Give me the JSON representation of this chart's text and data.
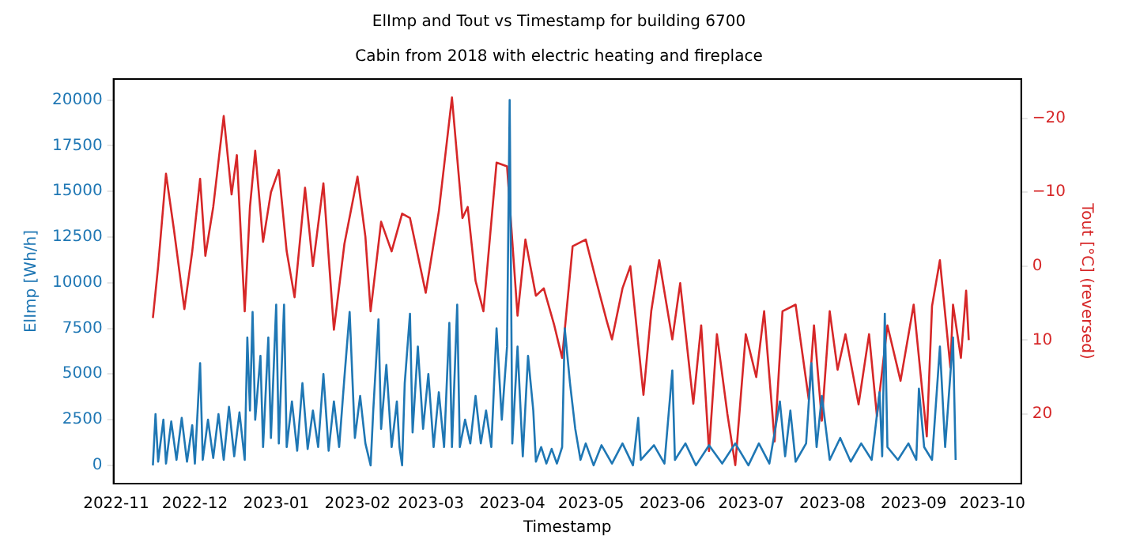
{
  "chart_data": {
    "type": "line",
    "title": "ElImp and Tout vs Timestamp for building 6700",
    "subtitle": "Cabin from 2018 with electric heating and fireplace",
    "xlabel": "Timestamp",
    "ylabel": "ElImp [Wh/h]",
    "y2label": "Tout [°C] (reversed)",
    "xlim": [
      "2022-10-31",
      "2023-10-12"
    ],
    "xticks": [
      "2022-11",
      "2022-12",
      "2023-01",
      "2023-02",
      "2023-03",
      "2023-04",
      "2023-05",
      "2023-06",
      "2023-07",
      "2023-08",
      "2023-09",
      "2023-10"
    ],
    "ylim": [
      -1000,
      21150
    ],
    "yticks": [
      0,
      2500,
      5000,
      7500,
      10000,
      12500,
      15000,
      17500,
      20000
    ],
    "y2lim": [
      29.4,
      -25.3
    ],
    "y2ticks": [
      {
        "value": -20,
        "label": "−20"
      },
      {
        "value": -10,
        "label": "−10"
      },
      0,
      10,
      20
    ],
    "grid": false,
    "legend": false,
    "series": [
      {
        "color": "#1f77b4",
        "x": [
          "2022-11-15",
          "2022-11-16",
          "2022-11-17",
          "2022-11-19",
          "2022-11-20",
          "2022-11-22",
          "2022-11-24",
          "2022-11-26",
          "2022-11-28",
          "2022-11-30",
          "2022-12-01",
          "2022-12-03",
          "2022-12-04",
          "2022-12-06",
          "2022-12-08",
          "2022-12-10",
          "2022-12-12",
          "2022-12-14",
          "2022-12-16",
          "2022-12-18",
          "2022-12-20",
          "2022-12-21",
          "2022-12-22",
          "2022-12-23",
          "2022-12-24",
          "2022-12-26",
          "2022-12-27",
          "2022-12-29",
          "2022-12-30",
          "2023-01-01",
          "2023-01-02",
          "2023-01-04",
          "2023-01-05",
          "2023-01-07",
          "2023-01-09",
          "2023-01-11",
          "2023-01-13",
          "2023-01-15",
          "2023-01-17",
          "2023-01-19",
          "2023-01-21",
          "2023-01-23",
          "2023-01-25",
          "2023-01-27",
          "2023-01-29",
          "2023-01-31",
          "2023-02-02",
          "2023-02-04",
          "2023-02-06",
          "2023-02-07",
          "2023-02-09",
          "2023-02-10",
          "2023-02-12",
          "2023-02-14",
          "2023-02-16",
          "2023-02-17",
          "2023-02-18",
          "2023-02-19",
          "2023-02-21",
          "2023-02-22",
          "2023-02-24",
          "2023-02-26",
          "2023-02-28",
          "2023-03-02",
          "2023-03-04",
          "2023-03-06",
          "2023-03-08",
          "2023-03-09",
          "2023-03-11",
          "2023-03-12",
          "2023-03-14",
          "2023-03-16",
          "2023-03-18",
          "2023-03-20",
          "2023-03-22",
          "2023-03-24",
          "2023-03-26",
          "2023-03-28",
          "2023-03-30",
          "2023-03-31",
          "2023-04-01",
          "2023-04-03",
          "2023-04-05",
          "2023-04-07",
          "2023-04-09",
          "2023-04-10",
          "2023-04-12",
          "2023-04-14",
          "2023-04-16",
          "2023-04-18",
          "2023-04-20",
          "2023-04-21",
          "2023-04-23",
          "2023-04-25",
          "2023-04-27",
          "2023-04-29",
          "2023-05-02",
          "2023-05-05",
          "2023-05-09",
          "2023-05-13",
          "2023-05-17",
          "2023-05-19",
          "2023-05-20",
          "2023-05-25",
          "2023-05-29",
          "2023-06-01",
          "2023-06-02",
          "2023-06-06",
          "2023-06-10",
          "2023-06-15",
          "2023-06-20",
          "2023-06-25",
          "2023-06-30",
          "2023-07-04",
          "2023-07-08",
          "2023-07-12",
          "2023-07-14",
          "2023-07-16",
          "2023-07-18",
          "2023-07-22",
          "2023-07-24",
          "2023-07-26",
          "2023-07-28",
          "2023-07-31",
          "2023-08-04",
          "2023-08-08",
          "2023-08-12",
          "2023-08-16",
          "2023-08-19",
          "2023-08-20",
          "2023-08-21",
          "2023-08-22",
          "2023-08-26",
          "2023-08-30",
          "2023-09-02",
          "2023-09-03",
          "2023-09-05",
          "2023-09-08",
          "2023-09-11",
          "2023-09-13",
          "2023-09-16",
          "2023-09-17"
        ],
        "values": [
          0,
          2800,
          200,
          2500,
          100,
          2400,
          300,
          2600,
          200,
          2200,
          100,
          5600,
          300,
          2500,
          400,
          2800,
          300,
          3200,
          500,
          2900,
          300,
          7000,
          3000,
          8400,
          2500,
          6000,
          1000,
          7000,
          1500,
          8800,
          1200,
          8800,
          1000,
          3500,
          800,
          4500,
          900,
          3000,
          1000,
          5000,
          800,
          3500,
          1000,
          4800,
          8400,
          1500,
          3800,
          1200,
          0,
          3000,
          8000,
          2000,
          5500,
          1000,
          3500,
          1000,
          0,
          4500,
          8300,
          1800,
          6500,
          2000,
          5000,
          1000,
          4000,
          1000,
          7800,
          1000,
          8800,
          1000,
          2500,
          1200,
          3800,
          1200,
          3000,
          1000,
          7500,
          2500,
          6500,
          20000,
          1200,
          6500,
          500,
          6000,
          3000,
          200,
          1000,
          100,
          900,
          100,
          1000,
          7500,
          4500,
          2000,
          300,
          1200,
          0,
          1100,
          100,
          1200,
          0,
          2600,
          300,
          1100,
          100,
          5200,
          300,
          1200,
          0,
          1100,
          100,
          1200,
          0,
          1200,
          100,
          3500,
          500,
          3000,
          200,
          1200,
          5600,
          1000,
          3800,
          300,
          1500,
          200,
          1200,
          300,
          4000,
          500,
          8300,
          1000,
          300,
          1200,
          300,
          4200,
          1000,
          300,
          6500,
          1000,
          7000,
          300
        ]
      },
      {
        "color": "#d62728",
        "axis": "y2",
        "x": [
          "2022-11-15",
          "2022-11-17",
          "2022-11-20",
          "2022-11-23",
          "2022-11-27",
          "2022-11-30",
          "2022-12-03",
          "2022-12-05",
          "2022-12-08",
          "2022-12-12",
          "2022-12-15",
          "2022-12-17",
          "2022-12-20",
          "2022-12-22",
          "2022-12-24",
          "2022-12-27",
          "2022-12-30",
          "2023-01-02",
          "2023-01-05",
          "2023-01-08",
          "2023-01-12",
          "2023-01-15",
          "2023-01-19",
          "2023-01-23",
          "2023-01-27",
          "2023-02-01",
          "2023-02-04",
          "2023-02-06",
          "2023-02-10",
          "2023-02-14",
          "2023-02-18",
          "2023-02-21",
          "2023-02-27",
          "2023-03-04",
          "2023-03-09",
          "2023-03-13",
          "2023-03-15",
          "2023-03-18",
          "2023-03-21",
          "2023-03-26",
          "2023-03-30",
          "2023-04-03",
          "2023-04-06",
          "2023-04-10",
          "2023-04-13",
          "2023-04-17",
          "2023-04-20",
          "2023-04-24",
          "2023-04-29",
          "2023-05-03",
          "2023-05-07",
          "2023-05-09",
          "2023-05-13",
          "2023-05-16",
          "2023-05-21",
          "2023-05-24",
          "2023-05-27",
          "2023-06-01",
          "2023-06-04",
          "2023-06-09",
          "2023-06-12",
          "2023-06-15",
          "2023-06-18",
          "2023-06-22",
          "2023-06-25",
          "2023-06-29",
          "2023-07-03",
          "2023-07-06",
          "2023-07-10",
          "2023-07-13",
          "2023-07-18",
          "2023-07-23",
          "2023-07-25",
          "2023-07-28",
          "2023-07-31",
          "2023-08-03",
          "2023-08-06",
          "2023-08-11",
          "2023-08-15",
          "2023-08-18",
          "2023-08-22",
          "2023-08-27",
          "2023-09-01",
          "2023-09-06",
          "2023-09-08",
          "2023-09-11",
          "2023-09-15",
          "2023-09-16",
          "2023-09-19",
          "2023-09-21",
          "2023-09-22"
        ],
        "values": [
          7,
          0,
          -12.5,
          -5,
          5.8,
          -2,
          -11.8,
          -1.4,
          -8,
          -20.3,
          -9.7,
          -15,
          6.1,
          -8,
          -15.6,
          -3.3,
          -10,
          -13,
          -2,
          4.2,
          -10.6,
          0,
          -11.2,
          8.6,
          -3,
          -12.1,
          -4,
          6.1,
          -6,
          -2,
          -7.1,
          -6.5,
          3.6,
          -7.4,
          -22.8,
          -6.5,
          -8,
          2,
          6.1,
          -14,
          -13.5,
          6.7,
          -3.6,
          4,
          3,
          8,
          12.4,
          -2.7,
          -3.6,
          2,
          7.4,
          9.9,
          3,
          0,
          17.4,
          6,
          -0.8,
          9.9,
          2.3,
          18.6,
          8,
          25,
          9.2,
          20,
          26.9,
          9.2,
          15,
          6.1,
          23.7,
          6.1,
          5.2,
          18,
          8,
          20.9,
          6.1,
          14,
          9.2,
          18.7,
          9.2,
          20.3,
          8,
          15.5,
          5.2,
          23,
          5.4,
          -0.8,
          13.7,
          5.2,
          12.4,
          3.3,
          10
        ]
      }
    ]
  }
}
